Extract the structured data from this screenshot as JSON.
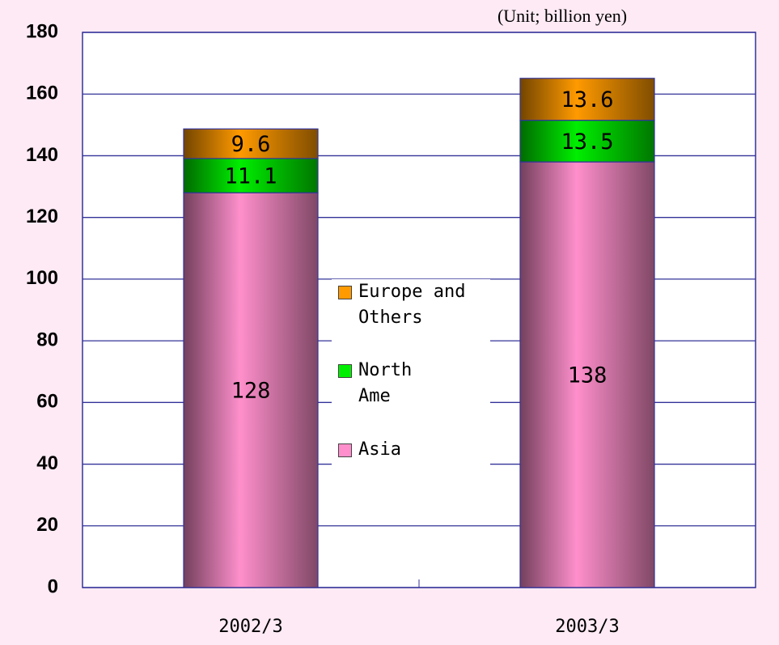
{
  "chart_data": {
    "type": "stacked-bar",
    "unit_label": "(Unit; billion yen)",
    "categories": [
      "2002/3",
      "2003/3"
    ],
    "series": [
      {
        "name": "Asia",
        "color": "#ff8fcc",
        "values": [
          128,
          138
        ]
      },
      {
        "name": "North Ame",
        "color": "#00ee00",
        "values": [
          11.1,
          13.5
        ]
      },
      {
        "name": "Europe and Others",
        "color": "#ff9a00",
        "values": [
          9.6,
          13.6
        ]
      }
    ],
    "ylim": [
      0,
      180
    ],
    "yticks": [
      0,
      20,
      40,
      60,
      80,
      100,
      120,
      140,
      160,
      180
    ],
    "grid": true
  }
}
